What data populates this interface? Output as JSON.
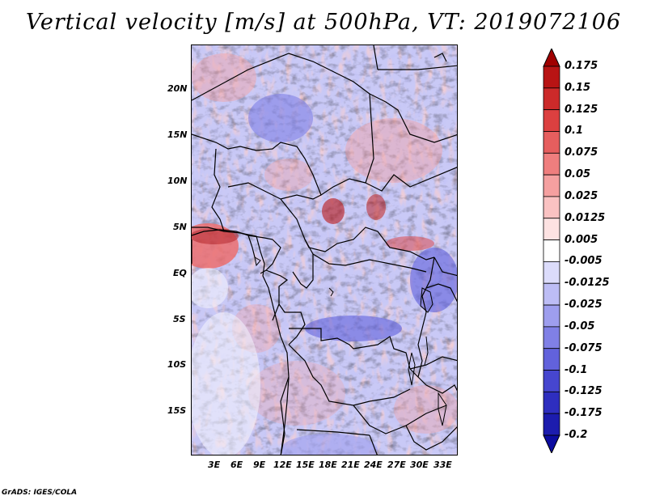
{
  "title": "Vertical velocity [m/s] at 500hPa, VT: 2019072106",
  "credit": "GrADS: IGES/COLA",
  "lat_labels": [
    "20N",
    "15N",
    "10N",
    "5N",
    "EQ",
    "5S",
    "10S",
    "15S"
  ],
  "lon_labels": [
    "3E",
    "6E",
    "9E",
    "12E",
    "15E",
    "18E",
    "21E",
    "24E",
    "27E",
    "30E",
    "33E"
  ],
  "colorbar": {
    "levels": [
      "0.175",
      "0.15",
      "0.125",
      "0.1",
      "0.075",
      "0.05",
      "0.025",
      "0.0125",
      "0.005",
      "-0.005",
      "-0.0125",
      "-0.025",
      "-0.05",
      "-0.075",
      "-0.1",
      "-0.125",
      "-0.175",
      "-0.2"
    ],
    "colors": [
      "#a00000",
      "#b81414",
      "#cc2a2a",
      "#dc4040",
      "#e65e5e",
      "#ef7e7e",
      "#f5a0a0",
      "#fac2c2",
      "#fde2e2",
      "#ffffff",
      "#dcdcfb",
      "#bdbdf5",
      "#9e9eee",
      "#8080e6",
      "#6262dc",
      "#4646cf",
      "#2e2ebf",
      "#1c1cae",
      "#0c0ca0"
    ]
  }
}
